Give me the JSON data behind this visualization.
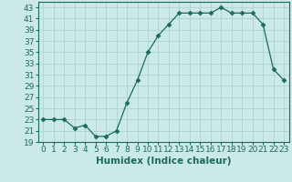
{
  "xlabel": "Humidex (Indice chaleur)",
  "x": [
    0,
    1,
    2,
    3,
    4,
    5,
    6,
    7,
    8,
    9,
    10,
    11,
    12,
    13,
    14,
    15,
    16,
    17,
    18,
    19,
    20,
    21,
    22,
    23
  ],
  "y": [
    23,
    23,
    23,
    21.5,
    22,
    20,
    20,
    21,
    26,
    30,
    35,
    38,
    40,
    42,
    42,
    42,
    42,
    43,
    42,
    42,
    42,
    40,
    32,
    30
  ],
  "ylim": [
    19,
    44
  ],
  "yticks": [
    19,
    21,
    23,
    25,
    27,
    29,
    31,
    33,
    35,
    37,
    39,
    41,
    43
  ],
  "xticks": [
    0,
    1,
    2,
    3,
    4,
    5,
    6,
    7,
    8,
    9,
    10,
    11,
    12,
    13,
    14,
    15,
    16,
    17,
    18,
    19,
    20,
    21,
    22,
    23
  ],
  "line_color": "#1a6b5a",
  "marker": "D",
  "marker_size": 2.5,
  "bg_color": "#cce9e9",
  "grid_color": "#b0d5d5",
  "tick_label_fontsize": 6.5,
  "xlabel_fontsize": 7.5
}
